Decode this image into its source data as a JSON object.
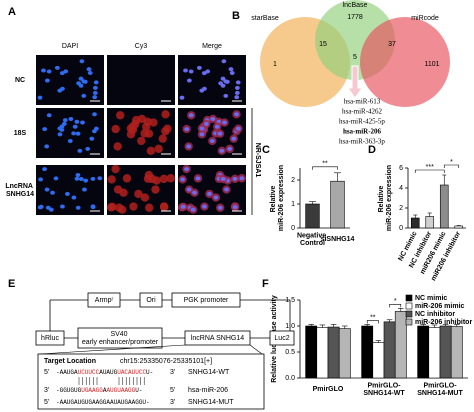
{
  "panel_labels": [
    "A",
    "B",
    "C",
    "D",
    "E",
    "F"
  ],
  "panel_a": {
    "columns": [
      "DAPI",
      "Cy3",
      "Merge"
    ],
    "rows": [
      "NC",
      "18S",
      "LncRNA SNHG14"
    ],
    "side_label": "NR-SJSA1"
  },
  "panel_b": {
    "sets": [
      "starBase",
      "lncBase",
      "miRcode"
    ],
    "counts": {
      "starBase": 1,
      "lncBase": 1778,
      "miRcode": 1101,
      "starBase_lncBase": 15,
      "lncBase_miRcode": 37,
      "all": 5
    },
    "mirnas": [
      {
        "name": "hsa-miR-613"
      },
      {
        "name": "hsa-miR-4262"
      },
      {
        "name": "hsa-miR-425-5p"
      },
      {
        "name": "hsa-miR-206",
        "color": "#e41a1c"
      },
      {
        "name": "hsa-miR-363-3p"
      }
    ]
  },
  "panel_e": {
    "boxes": {
      "ampr": "Armpʳ",
      "ori": "Ori",
      "pgk": "PGK promoter",
      "hrluc": "hRluc",
      "sv40": "SV40 early enhancer/promoter",
      "snhg14": "lncRNA SNHG14",
      "luc2": "Luc2"
    },
    "target": {
      "label": "Target Location",
      "locus": "chr15:25335076-25335101[+]",
      "rows": [
        {
          "end_left": "5'",
          "seq": [
            {
              "text": "-AAUGA"
            },
            {
              "text": "UCUUCC",
              "color": "#e41a1c"
            },
            {
              "text": "AUAUG"
            },
            {
              "text": "UACAUUCC",
              "color": "#e41a1c"
            },
            {
              "text": "U-"
            }
          ],
          "end_right": "3'",
          "name": "SNHG14-WT"
        },
        {
          "end_left": "3'",
          "seq": [
            {
              "text": "-GGUGUG"
            },
            {
              "text": "UGAAGG",
              "color": "#e41a1c"
            },
            {
              "text": "A"
            },
            {
              "text": "AUGUAAGG",
              "color": "#e41a1c"
            },
            {
              "text": "U-"
            }
          ],
          "end_right": "5'",
          "name": "hsa-miR-206"
        },
        {
          "end_left": "5'",
          "seq": [
            {
              "text": "-AAUGAUGUGAAGGAAUAUGAAGGU-"
            }
          ],
          "end_right": "3'",
          "name": "SNHG14-MUT"
        }
      ]
    }
  },
  "chart_data": [
    {
      "type": "bar",
      "ylabel": "Relative miR-206 expression",
      "categories": [
        "Negative Control",
        "siSNHG14"
      ],
      "values": [
        1.0,
        1.95
      ],
      "errors": [
        0.1,
        0.35
      ],
      "colors": [
        "#3a3a3a",
        "#a8a8a8"
      ],
      "ylim": [
        0,
        2.5
      ],
      "yticks": [
        0,
        1,
        2
      ],
      "annotations": [
        "**"
      ]
    },
    {
      "type": "bar",
      "ylabel": "Relative miR-206 expression",
      "categories": [
        "NC mimic",
        "NC inhibitor",
        "miR206 mimic",
        "miR206 inhibitor"
      ],
      "values": [
        1.0,
        1.15,
        4.3,
        0.2
      ],
      "errors": [
        0.3,
        0.35,
        1.0,
        0.05
      ],
      "colors": [
        "#2b2b2b",
        "#d0d0d0",
        "#8c8c8c",
        "#ffffff"
      ],
      "ylim": [
        0,
        6
      ],
      "yticks": [
        0,
        2,
        4,
        6
      ],
      "annotations": [
        "***",
        "*"
      ]
    },
    {
      "type": "grouped-bar",
      "ylabel": "Relative luciferase activity",
      "categories": [
        "PmirGLO",
        "PmirGLO-SNHG14-WT",
        "PmirGLO-SNHG14-MUT"
      ],
      "series": [
        {
          "name": "NC mimic",
          "color": "#000000",
          "values": [
            1.0,
            1.0,
            1.0
          ],
          "errors": [
            0.03,
            0.03,
            0.03
          ]
        },
        {
          "name": "miR-206 mimic",
          "color": "#ffffff",
          "values": [
            0.97,
            0.68,
            0.97
          ],
          "errors": [
            0.05,
            0.04,
            0.05
          ]
        },
        {
          "name": "NC inhibitor",
          "color": "#555555",
          "values": [
            0.98,
            1.08,
            1.0
          ],
          "errors": [
            0.05,
            0.04,
            0.03
          ]
        },
        {
          "name": "miR-206 inhibitor",
          "color": "#b5b5b5",
          "values": [
            0.95,
            1.28,
            0.99
          ],
          "errors": [
            0.05,
            0.06,
            0.04
          ]
        }
      ],
      "ylim": [
        0,
        1.5
      ],
      "yticks": [
        {
          "value": 0,
          "label": "0.0"
        },
        {
          "value": 0.5,
          "label": "0.5"
        },
        {
          "value": 1,
          "label": "1.0"
        },
        {
          "value": 1.5,
          "label": "1.5"
        }
      ],
      "legend": "top-right",
      "annotations": [
        "**",
        "*"
      ]
    }
  ]
}
